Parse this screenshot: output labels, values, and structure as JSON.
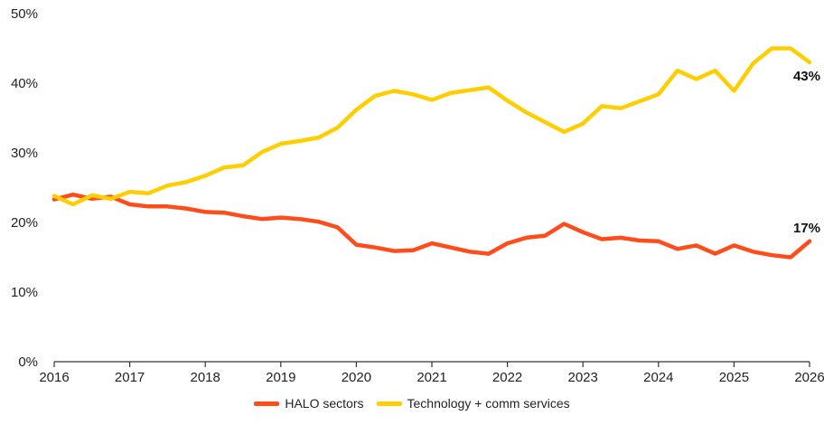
{
  "chart_data": {
    "type": "line",
    "title": "",
    "xlabel": "",
    "ylabel": "",
    "x_ticks": [
      "2016",
      "2017",
      "2018",
      "2019",
      "2020",
      "2021",
      "2022",
      "2023",
      "2024",
      "2025",
      "2026"
    ],
    "y_ticks": [
      "0%",
      "10%",
      "20%",
      "30%",
      "40%",
      "50%"
    ],
    "xlim": [
      2016,
      2026
    ],
    "ylim": [
      0,
      50
    ],
    "legend_position": "bottom",
    "series": [
      {
        "name": "HALO sectors",
        "color": "#ff4c1a",
        "end_label": "17%",
        "points": [
          [
            2016.0,
            23.3
          ],
          [
            2016.25,
            24.0
          ],
          [
            2016.5,
            23.4
          ],
          [
            2016.75,
            23.7
          ],
          [
            2017.0,
            22.6
          ],
          [
            2017.25,
            22.3
          ],
          [
            2017.5,
            22.3
          ],
          [
            2017.75,
            22.0
          ],
          [
            2018.0,
            21.5
          ],
          [
            2018.25,
            21.4
          ],
          [
            2018.5,
            20.9
          ],
          [
            2018.75,
            20.5
          ],
          [
            2019.0,
            20.7
          ],
          [
            2019.25,
            20.5
          ],
          [
            2019.5,
            20.1
          ],
          [
            2019.75,
            19.3
          ],
          [
            2020.0,
            16.8
          ],
          [
            2020.25,
            16.4
          ],
          [
            2020.5,
            15.9
          ],
          [
            2020.75,
            16.0
          ],
          [
            2021.0,
            17.0
          ],
          [
            2021.25,
            16.4
          ],
          [
            2021.5,
            15.8
          ],
          [
            2021.75,
            15.5
          ],
          [
            2022.0,
            17.0
          ],
          [
            2022.25,
            17.8
          ],
          [
            2022.5,
            18.1
          ],
          [
            2022.75,
            19.8
          ],
          [
            2023.0,
            18.6
          ],
          [
            2023.25,
            17.6
          ],
          [
            2023.5,
            17.8
          ],
          [
            2023.75,
            17.4
          ],
          [
            2024.0,
            17.3
          ],
          [
            2024.25,
            16.2
          ],
          [
            2024.5,
            16.7
          ],
          [
            2024.75,
            15.5
          ],
          [
            2025.0,
            16.7
          ],
          [
            2025.25,
            15.8
          ],
          [
            2025.5,
            15.3
          ],
          [
            2025.75,
            15.0
          ],
          [
            2026.0,
            17.3
          ]
        ]
      },
      {
        "name": "Technology + comm services",
        "color": "#ffce00",
        "end_label": "43%",
        "points": [
          [
            2016.0,
            23.8
          ],
          [
            2016.25,
            22.6
          ],
          [
            2016.5,
            23.9
          ],
          [
            2016.75,
            23.4
          ],
          [
            2017.0,
            24.4
          ],
          [
            2017.25,
            24.2
          ],
          [
            2017.5,
            25.3
          ],
          [
            2017.75,
            25.8
          ],
          [
            2018.0,
            26.7
          ],
          [
            2018.25,
            27.9
          ],
          [
            2018.5,
            28.2
          ],
          [
            2018.75,
            30.1
          ],
          [
            2019.0,
            31.3
          ],
          [
            2019.25,
            31.7
          ],
          [
            2019.5,
            32.2
          ],
          [
            2019.75,
            33.6
          ],
          [
            2020.0,
            36.2
          ],
          [
            2020.25,
            38.2
          ],
          [
            2020.5,
            38.9
          ],
          [
            2020.75,
            38.4
          ],
          [
            2021.0,
            37.6
          ],
          [
            2021.25,
            38.6
          ],
          [
            2021.5,
            39.0
          ],
          [
            2021.75,
            39.4
          ],
          [
            2022.0,
            37.5
          ],
          [
            2022.25,
            35.8
          ],
          [
            2022.5,
            34.4
          ],
          [
            2022.75,
            33.0
          ],
          [
            2023.0,
            34.2
          ],
          [
            2023.25,
            36.7
          ],
          [
            2023.5,
            36.4
          ],
          [
            2023.75,
            37.4
          ],
          [
            2024.0,
            38.4
          ],
          [
            2024.25,
            41.8
          ],
          [
            2024.5,
            40.6
          ],
          [
            2024.75,
            41.8
          ],
          [
            2025.0,
            38.9
          ],
          [
            2025.25,
            42.8
          ],
          [
            2025.5,
            45.0
          ],
          [
            2025.75,
            45.0
          ],
          [
            2026.0,
            43.0
          ]
        ]
      }
    ]
  }
}
